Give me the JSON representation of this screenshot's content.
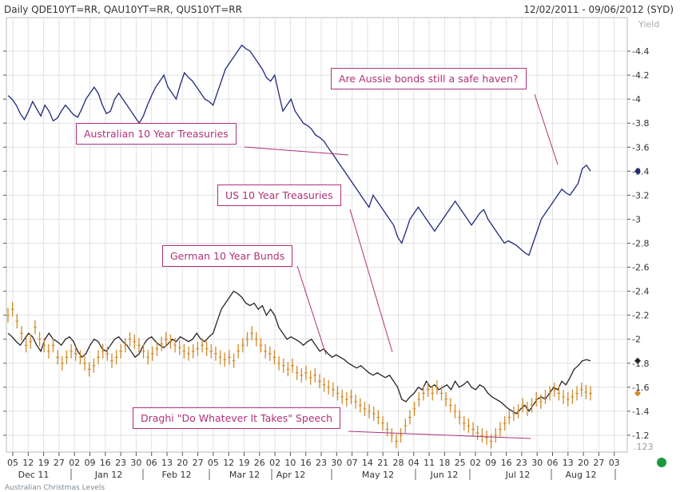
{
  "header": {
    "title": "Daily QDE10YT=RR, QAU10YT=RR, QUS10YT=RR",
    "range": "12/02/2011 - 09/06/2012 (SYD)"
  },
  "chart_data": {
    "type": "line",
    "ylabel": "Yield",
    "yticks": [
      "4.4",
      "4.2",
      "4",
      "3.8",
      "3.6",
      "3.4",
      "3.2",
      "3",
      "2.8",
      "2.6",
      "2.4",
      "2.2",
      "2",
      "1.8",
      "1.6",
      "1.4",
      "1.2"
    ],
    "y_bottom_label": "123",
    "x_day_labels": [
      "05",
      "12",
      "19",
      "27",
      "02",
      "09",
      "16",
      "23",
      "30",
      "06",
      "13",
      "20",
      "27",
      "05",
      "12",
      "19",
      "26",
      "02",
      "10",
      "16",
      "23",
      "30",
      "07",
      "14",
      "21",
      "28",
      "04",
      "11",
      "18",
      "25",
      "02",
      "09",
      "16",
      "23",
      "30",
      "06",
      "13",
      "20",
      "27",
      "03"
    ],
    "x_month_labels": [
      "Dec 11",
      "Jan 12",
      "Feb 12",
      "Mar 12",
      "Apr 12",
      "May 12",
      "Jun 12",
      "Jul 12",
      "Aug 12"
    ],
    "grid": true,
    "callouts": {
      "aussie": "Are Aussie bonds still a safe haven?",
      "australian": "Australian 10 Year Treasuries",
      "us": "US 10 Year Treasuries",
      "german": "German 10 Year Bunds",
      "draghi": "Draghi \"Do Whatever It Takes\" Speech"
    },
    "series": [
      {
        "key": "australia",
        "color": "#1f2a7a",
        "end_marker_value": 3.4,
        "values": [
          4.03,
          4.0,
          3.95,
          3.88,
          3.83,
          3.9,
          3.98,
          3.92,
          3.86,
          3.95,
          3.9,
          3.82,
          3.84,
          3.9,
          3.95,
          3.91,
          3.87,
          3.85,
          3.92,
          4.0,
          4.05,
          4.1,
          4.05,
          3.95,
          3.88,
          3.9,
          4.0,
          4.05,
          4.0,
          3.95,
          3.9,
          3.85,
          3.8,
          3.86,
          3.95,
          4.03,
          4.1,
          4.15,
          4.2,
          4.1,
          4.05,
          4.0,
          4.12,
          4.22,
          4.18,
          4.15,
          4.1,
          4.05,
          4.0,
          3.98,
          3.95,
          4.05,
          4.15,
          4.25,
          4.3,
          4.35,
          4.4,
          4.45,
          4.42,
          4.4,
          4.35,
          4.3,
          4.25,
          4.18,
          4.15,
          4.2,
          4.05,
          3.9,
          3.95,
          4.0,
          3.9,
          3.85,
          3.8,
          3.78,
          3.75,
          3.7,
          3.68,
          3.65,
          3.6,
          3.55,
          3.5,
          3.45,
          3.4,
          3.35,
          3.3,
          3.25,
          3.2,
          3.15,
          3.1,
          3.2,
          3.15,
          3.1,
          3.05,
          3.0,
          2.95,
          2.85,
          2.8,
          2.9,
          3.0,
          3.05,
          3.1,
          3.05,
          3.0,
          2.95,
          2.9,
          2.95,
          3.0,
          3.05,
          3.1,
          3.15,
          3.1,
          3.05,
          3.0,
          2.95,
          3.0,
          3.05,
          3.08,
          3.0,
          2.95,
          2.9,
          2.85,
          2.8,
          2.82,
          2.8,
          2.78,
          2.75,
          2.72,
          2.7,
          2.8,
          2.9,
          3.0,
          3.05,
          3.1,
          3.15,
          3.2,
          3.25,
          3.22,
          3.2,
          3.25,
          3.3,
          3.42,
          3.45,
          3.4
        ]
      },
      {
        "key": "us",
        "color": "#2a2326",
        "end_marker_value": 1.82,
        "values": [
          2.05,
          2.02,
          1.98,
          1.95,
          2.0,
          2.05,
          2.02,
          1.95,
          1.9,
          2.0,
          2.05,
          2.0,
          1.98,
          1.95,
          2.0,
          2.02,
          1.98,
          1.9,
          1.85,
          1.88,
          1.95,
          2.0,
          1.98,
          1.92,
          1.9,
          1.95,
          2.0,
          2.02,
          1.98,
          1.95,
          1.9,
          1.85,
          1.88,
          1.95,
          2.0,
          2.02,
          1.98,
          1.95,
          1.93,
          1.96,
          2.0,
          1.98,
          2.02,
          2.0,
          1.98,
          2.0,
          2.05,
          2.0,
          1.98,
          2.02,
          2.05,
          2.15,
          2.25,
          2.3,
          2.35,
          2.4,
          2.38,
          2.35,
          2.3,
          2.28,
          2.3,
          2.25,
          2.28,
          2.2,
          2.25,
          2.2,
          2.1,
          2.05,
          2.0,
          2.02,
          2.0,
          1.98,
          1.95,
          1.98,
          2.0,
          1.95,
          1.9,
          1.92,
          1.88,
          1.85,
          1.87,
          1.85,
          1.83,
          1.8,
          1.78,
          1.76,
          1.78,
          1.75,
          1.72,
          1.7,
          1.72,
          1.7,
          1.68,
          1.7,
          1.65,
          1.6,
          1.5,
          1.48,
          1.52,
          1.55,
          1.6,
          1.58,
          1.65,
          1.6,
          1.62,
          1.58,
          1.6,
          1.62,
          1.58,
          1.65,
          1.6,
          1.62,
          1.65,
          1.6,
          1.58,
          1.62,
          1.6,
          1.55,
          1.52,
          1.5,
          1.48,
          1.45,
          1.42,
          1.4,
          1.38,
          1.42,
          1.45,
          1.4,
          1.45,
          1.5,
          1.52,
          1.5,
          1.55,
          1.6,
          1.58,
          1.65,
          1.62,
          1.68,
          1.75,
          1.78,
          1.82,
          1.83,
          1.82
        ]
      },
      {
        "key": "germany",
        "color": "#d08a2a",
        "end_marker_value": 1.55,
        "values": [
          2.2,
          2.25,
          2.15,
          2.05,
          1.95,
          1.98,
          2.1,
          2.0,
          1.95,
          1.9,
          1.95,
          1.85,
          1.8,
          1.85,
          1.9,
          1.88,
          1.85,
          1.8,
          1.75,
          1.78,
          1.85,
          1.9,
          1.88,
          1.82,
          1.85,
          1.9,
          1.95,
          2.0,
          1.98,
          1.95,
          1.9,
          1.85,
          1.88,
          1.92,
          1.96,
          2.0,
          1.98,
          1.95,
          1.93,
          1.9,
          1.88,
          1.9,
          1.92,
          1.95,
          1.92,
          1.9,
          1.88,
          1.85,
          1.83,
          1.85,
          1.82,
          1.9,
          1.95,
          2.0,
          2.05,
          2.0,
          1.95,
          1.9,
          1.88,
          1.85,
          1.8,
          1.78,
          1.75,
          1.78,
          1.72,
          1.7,
          1.72,
          1.68,
          1.7,
          1.65,
          1.62,
          1.6,
          1.58,
          1.55,
          1.52,
          1.5,
          1.52,
          1.48,
          1.45,
          1.42,
          1.4,
          1.38,
          1.35,
          1.3,
          1.25,
          1.2,
          1.15,
          1.2,
          1.28,
          1.35,
          1.42,
          1.5,
          1.55,
          1.58,
          1.55,
          1.6,
          1.55,
          1.5,
          1.45,
          1.4,
          1.35,
          1.3,
          1.28,
          1.25,
          1.22,
          1.2,
          1.18,
          1.15,
          1.2,
          1.25,
          1.3,
          1.35,
          1.38,
          1.4,
          1.45,
          1.42,
          1.45,
          1.5,
          1.48,
          1.52,
          1.55,
          1.58,
          1.55,
          1.52,
          1.5,
          1.52,
          1.55,
          1.58,
          1.56,
          1.55
        ]
      }
    ]
  },
  "footer": {
    "text": "Australian Christmas Levels"
  }
}
